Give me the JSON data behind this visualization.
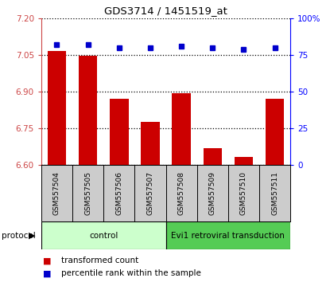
{
  "title": "GDS3714 / 1451519_at",
  "samples": [
    "GSM557504",
    "GSM557505",
    "GSM557506",
    "GSM557507",
    "GSM557508",
    "GSM557509",
    "GSM557510",
    "GSM557511"
  ],
  "transformed_count": [
    7.065,
    7.048,
    6.872,
    6.775,
    6.895,
    6.67,
    6.632,
    6.872
  ],
  "percentile_rank": [
    82,
    82,
    80,
    80,
    81,
    80,
    79,
    80
  ],
  "ylim_left": [
    6.6,
    7.2
  ],
  "yticks_left": [
    6.6,
    6.75,
    6.9,
    7.05,
    7.2
  ],
  "ylim_right": [
    0,
    100
  ],
  "yticks_right": [
    0,
    25,
    50,
    75,
    100
  ],
  "bar_color": "#cc0000",
  "dot_color": "#0000cc",
  "groups": [
    {
      "label": "control",
      "indices": [
        0,
        1,
        2,
        3
      ],
      "color": "#ccffcc"
    },
    {
      "label": "Evi1 retroviral transduction",
      "indices": [
        4,
        5,
        6,
        7
      ],
      "color": "#55cc55"
    }
  ],
  "protocol_label": "protocol",
  "legend_bar_label": "transformed count",
  "legend_dot_label": "percentile rank within the sample",
  "tick_area_color": "#cccccc"
}
